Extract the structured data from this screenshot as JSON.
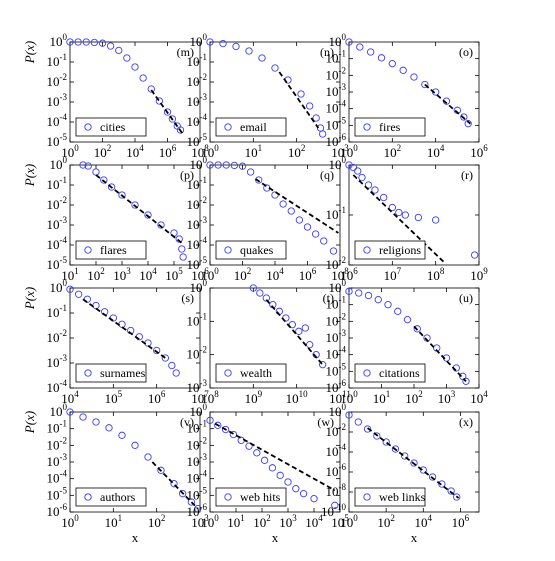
{
  "figure": {
    "xlabel": "x",
    "ylabel": "P(x)"
  },
  "style": {
    "marker_color": "#3b3bff",
    "fit_color": "#000000"
  },
  "chart_data": [
    {
      "type": "scatter",
      "panel": "(m)",
      "legend": "cities",
      "xlog": [
        0,
        8
      ],
      "ylog": [
        -5,
        0
      ],
      "xticks": [
        0,
        2,
        4,
        6,
        8
      ],
      "yticks": [
        0,
        -1,
        -2,
        -3,
        -4,
        -5
      ],
      "series": [
        {
          "name": "cities",
          "points": [
            [
              0,
              0
            ],
            [
              0.5,
              0
            ],
            [
              1,
              0
            ],
            [
              1.5,
              -0.02
            ],
            [
              2,
              -0.06
            ],
            [
              2.5,
              -0.2
            ],
            [
              3,
              -0.42
            ],
            [
              3.5,
              -0.8
            ],
            [
              4,
              -1.25
            ],
            [
              4.5,
              -1.8
            ],
            [
              5,
              -2.35
            ],
            [
              5.5,
              -2.95
            ],
            [
              6,
              -3.5
            ],
            [
              6.3,
              -3.85
            ],
            [
              6.6,
              -4.2
            ],
            [
              6.8,
              -4.4
            ]
          ]
        }
      ],
      "fit": [
        [
          5,
          -2.4
        ],
        [
          6.9,
          -4.55
        ]
      ]
    },
    {
      "type": "scatter",
      "panel": "(n)",
      "legend": "email",
      "xlog": [
        0,
        3
      ],
      "ylog": [
        -5,
        0
      ],
      "xticks": [
        0,
        1,
        2,
        3
      ],
      "yticks": [
        0,
        -1,
        -2,
        -3,
        -4,
        -5
      ],
      "series": [
        {
          "name": "email",
          "points": [
            [
              0,
              0
            ],
            [
              0.3,
              -0.08
            ],
            [
              0.6,
              -0.22
            ],
            [
              0.9,
              -0.45
            ],
            [
              1.2,
              -0.8
            ],
            [
              1.5,
              -1.3
            ],
            [
              1.8,
              -1.9
            ],
            [
              2.1,
              -2.6
            ],
            [
              2.3,
              -3.2
            ],
            [
              2.45,
              -3.8
            ],
            [
              2.55,
              -4.3
            ],
            [
              2.6,
              -4.6
            ]
          ]
        }
      ],
      "fit": [
        [
          1.6,
          -1.5
        ],
        [
          2.5,
          -4.3
        ]
      ]
    },
    {
      "type": "scatter",
      "panel": "(o)",
      "legend": "fires",
      "xlog": [
        0,
        6
      ],
      "ylog": [
        -6,
        0
      ],
      "xticks": [
        0,
        2,
        4,
        6
      ],
      "yticks": [
        0,
        -1,
        -2,
        -3,
        -4,
        -5,
        -6
      ],
      "series": [
        {
          "name": "fires",
          "points": [
            [
              0,
              0
            ],
            [
              0.5,
              -0.3
            ],
            [
              1,
              -0.6
            ],
            [
              1.5,
              -0.95
            ],
            [
              2,
              -1.3
            ],
            [
              2.5,
              -1.7
            ],
            [
              3,
              -2.1
            ],
            [
              3.5,
              -2.55
            ],
            [
              4,
              -3.0
            ],
            [
              4.5,
              -3.55
            ],
            [
              5,
              -4.1
            ],
            [
              5.3,
              -4.5
            ],
            [
              5.5,
              -4.9
            ]
          ]
        }
      ],
      "fit": [
        [
          3.5,
          -2.55
        ],
        [
          5.6,
          -4.9
        ]
      ]
    },
    {
      "type": "scatter",
      "panel": "(p)",
      "legend": "flares",
      "xlog": [
        1,
        6
      ],
      "ylog": [
        -5,
        0
      ],
      "xticks": [
        1,
        2,
        3,
        4,
        5,
        6
      ],
      "yticks": [
        0,
        -1,
        -2,
        -3,
        -4,
        -5
      ],
      "series": [
        {
          "name": "flares",
          "points": [
            [
              1.5,
              0
            ],
            [
              1.7,
              -0.05
            ],
            [
              2,
              -0.35
            ],
            [
              2.3,
              -0.75
            ],
            [
              2.6,
              -1.1
            ],
            [
              3,
              -1.5
            ],
            [
              3.5,
              -2.0
            ],
            [
              4,
              -2.5
            ],
            [
              4.5,
              -3.0
            ],
            [
              5,
              -3.4
            ],
            [
              5.2,
              -3.7
            ],
            [
              5.3,
              -4.2
            ],
            [
              5.35,
              -4.6
            ]
          ]
        }
      ],
      "fit": [
        [
          2,
          -0.5
        ],
        [
          5.3,
          -3.9
        ]
      ]
    },
    {
      "type": "scatter",
      "panel": "(q)",
      "legend": "quakes",
      "xlog": [
        0,
        8
      ],
      "ylog": [
        -5,
        0
      ],
      "xticks": [
        0,
        2,
        4,
        6,
        8
      ],
      "yticks": [
        0,
        -1,
        -2,
        -3,
        -4,
        -5
      ],
      "series": [
        {
          "name": "quakes",
          "points": [
            [
              0,
              0
            ],
            [
              0.5,
              0
            ],
            [
              1,
              0
            ],
            [
              1.5,
              -0.02
            ],
            [
              2,
              -0.06
            ],
            [
              2.5,
              -0.35
            ],
            [
              3,
              -0.75
            ],
            [
              3.5,
              -1.15
            ],
            [
              4,
              -1.5
            ],
            [
              4.5,
              -1.95
            ],
            [
              5,
              -2.3
            ],
            [
              5.5,
              -2.75
            ],
            [
              6,
              -3.1
            ],
            [
              6.5,
              -3.45
            ],
            [
              7,
              -3.8
            ],
            [
              7.6,
              -4.3
            ]
          ]
        }
      ],
      "fit": [
        [
          2.8,
          -0.7
        ],
        [
          7.9,
          -3.4
        ]
      ]
    },
    {
      "type": "scatter",
      "panel": "(r)",
      "legend": "religions",
      "xlog": [
        6,
        9
      ],
      "ylog": [
        -2,
        0
      ],
      "xticks": [
        6,
        7,
        8,
        9
      ],
      "yticks": [
        0,
        -1,
        -2
      ],
      "series": [
        {
          "name": "religions",
          "points": [
            [
              6.0,
              0
            ],
            [
              6.1,
              -0.05
            ],
            [
              6.2,
              -0.12
            ],
            [
              6.3,
              -0.25
            ],
            [
              6.45,
              -0.4
            ],
            [
              6.6,
              -0.5
            ],
            [
              6.8,
              -0.65
            ],
            [
              7.0,
              -0.85
            ],
            [
              7.15,
              -0.95
            ],
            [
              7.3,
              -1.0
            ],
            [
              7.6,
              -1.05
            ],
            [
              8.0,
              -1.1
            ],
            [
              8.9,
              -1.8
            ]
          ]
        }
      ],
      "fit": [
        [
          6.1,
          -0.2
        ],
        [
          8.2,
          -1.95
        ]
      ]
    },
    {
      "type": "scatter",
      "panel": "(s)",
      "legend": "surnames",
      "xlog": [
        4,
        7
      ],
      "ylog": [
        -4,
        0
      ],
      "xticks": [
        4,
        5,
        6,
        7
      ],
      "yticks": [
        0,
        -1,
        -2,
        -3,
        -4
      ],
      "series": [
        {
          "name": "surnames",
          "points": [
            [
              4.0,
              -0.05
            ],
            [
              4.2,
              -0.25
            ],
            [
              4.4,
              -0.45
            ],
            [
              4.6,
              -0.7
            ],
            [
              4.8,
              -0.95
            ],
            [
              5.0,
              -1.2
            ],
            [
              5.2,
              -1.45
            ],
            [
              5.4,
              -1.7
            ],
            [
              5.6,
              -1.95
            ],
            [
              5.8,
              -2.2
            ],
            [
              6.0,
              -2.5
            ],
            [
              6.2,
              -2.8
            ],
            [
              6.35,
              -3.1
            ],
            [
              6.45,
              -3.4
            ]
          ]
        }
      ],
      "fit": [
        [
          4.3,
          -0.45
        ],
        [
          6.2,
          -2.8
        ]
      ]
    },
    {
      "type": "scatter",
      "panel": "(t)",
      "legend": "wealth",
      "xlog": [
        8,
        11
      ],
      "ylog": [
        -3,
        0
      ],
      "xticks": [
        8,
        9,
        10,
        11
      ],
      "yticks": [
        0,
        -1,
        -2,
        -3
      ],
      "series": [
        {
          "name": "wealth",
          "points": [
            [
              9.0,
              0
            ],
            [
              9.15,
              -0.15
            ],
            [
              9.3,
              -0.3
            ],
            [
              9.45,
              -0.5
            ],
            [
              9.6,
              -0.7
            ],
            [
              9.75,
              -0.9
            ],
            [
              9.9,
              -1.1
            ],
            [
              10.05,
              -1.3
            ],
            [
              10.2,
              -1.2
            ],
            [
              10.3,
              -1.7
            ],
            [
              10.45,
              -2.0
            ],
            [
              10.6,
              -2.3
            ]
          ]
        }
      ],
      "fit": [
        [
          9.3,
          -0.35
        ],
        [
          10.6,
          -2.3
        ]
      ]
    },
    {
      "type": "scatter",
      "panel": "(u)",
      "legend": "citations",
      "xlog": [
        0,
        4
      ],
      "ylog": [
        -6,
        0
      ],
      "xticks": [
        0,
        1,
        2,
        3,
        4
      ],
      "yticks": [
        0,
        -1,
        -2,
        -3,
        -4,
        -5,
        -6
      ],
      "series": [
        {
          "name": "citations",
          "points": [
            [
              0,
              -0.2
            ],
            [
              0.3,
              -0.3
            ],
            [
              0.6,
              -0.45
            ],
            [
              0.9,
              -0.7
            ],
            [
              1.2,
              -1.0
            ],
            [
              1.5,
              -1.4
            ],
            [
              1.8,
              -1.9
            ],
            [
              2.1,
              -2.45
            ],
            [
              2.4,
              -3.0
            ],
            [
              2.7,
              -3.6
            ],
            [
              3.0,
              -4.2
            ],
            [
              3.3,
              -4.8
            ],
            [
              3.5,
              -5.3
            ],
            [
              3.6,
              -5.6
            ]
          ]
        }
      ],
      "fit": [
        [
          2.0,
          -2.3
        ],
        [
          3.6,
          -5.6
        ]
      ]
    },
    {
      "type": "scatter",
      "panel": "(v)",
      "legend": "authors",
      "xlog": [
        0,
        3
      ],
      "ylog": [
        -6,
        0
      ],
      "xticks": [
        0,
        1,
        2,
        3
      ],
      "yticks": [
        0,
        -1,
        -2,
        -3,
        -4,
        -5,
        -6
      ],
      "series": [
        {
          "name": "authors",
          "points": [
            [
              0,
              0
            ],
            [
              0.3,
              -0.3
            ],
            [
              0.6,
              -0.6
            ],
            [
              0.9,
              -0.95
            ],
            [
              1.2,
              -1.4
            ],
            [
              1.5,
              -2.0
            ],
            [
              1.8,
              -2.7
            ],
            [
              2.1,
              -3.5
            ],
            [
              2.4,
              -4.3
            ],
            [
              2.6,
              -4.9
            ],
            [
              2.8,
              -5.4
            ],
            [
              2.95,
              -5.8
            ]
          ]
        }
      ],
      "fit": [
        [
          1.9,
          -3.0
        ],
        [
          2.95,
          -5.8
        ]
      ]
    },
    {
      "type": "scatter",
      "panel": "(w)",
      "legend": "web hits",
      "xlog": [
        0,
        5
      ],
      "ylog": [
        -6,
        0
      ],
      "xticks": [
        0,
        1,
        2,
        3,
        4,
        5
      ],
      "yticks": [
        0,
        -1,
        -2,
        -3,
        -4,
        -5,
        -6
      ],
      "series": [
        {
          "name": "web hits",
          "points": [
            [
              0,
              -0.5
            ],
            [
              0.3,
              -0.8
            ],
            [
              0.6,
              -1.05
            ],
            [
              0.9,
              -1.35
            ],
            [
              1.2,
              -1.7
            ],
            [
              1.5,
              -2.05
            ],
            [
              1.8,
              -2.45
            ],
            [
              2.1,
              -2.9
            ],
            [
              2.4,
              -3.35
            ],
            [
              2.7,
              -3.8
            ],
            [
              3.0,
              -4.2
            ],
            [
              3.3,
              -4.6
            ],
            [
              3.6,
              -4.9
            ],
            [
              4.0,
              -5.2
            ],
            [
              4.8,
              -5.6
            ]
          ]
        }
      ],
      "fit": [
        [
          0.2,
          -0.7
        ],
        [
          4.8,
          -4.7
        ]
      ]
    },
    {
      "type": "scatter",
      "panel": "(x)",
      "legend": "web links",
      "xlog": [
        0,
        7
      ],
      "ylog": [
        -10,
        0
      ],
      "xticks": [
        0,
        2,
        4,
        6
      ],
      "yticks": [
        0,
        -2,
        -4,
        -6,
        -8,
        -10
      ],
      "series": [
        {
          "name": "web links",
          "points": [
            [
              0,
              -0.3
            ],
            [
              0.5,
              -1.0
            ],
            [
              1,
              -1.7
            ],
            [
              1.5,
              -2.4
            ],
            [
              2,
              -3.0
            ],
            [
              2.5,
              -3.7
            ],
            [
              3,
              -4.4
            ],
            [
              3.5,
              -5.1
            ],
            [
              4,
              -5.8
            ],
            [
              4.5,
              -6.5
            ],
            [
              5,
              -7.2
            ],
            [
              5.5,
              -7.9
            ],
            [
              5.8,
              -8.5
            ]
          ]
        }
      ],
      "fit": [
        [
          1,
          -1.6
        ],
        [
          5.9,
          -8.6
        ]
      ]
    }
  ]
}
